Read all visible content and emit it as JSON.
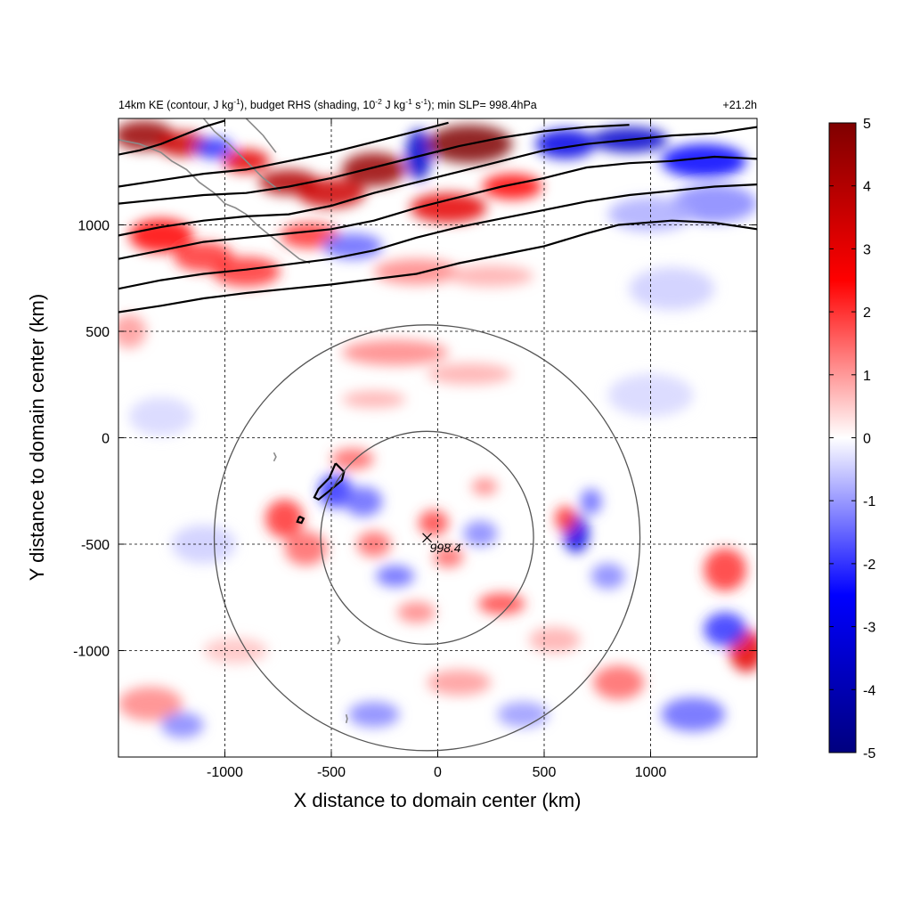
{
  "chart_data": {
    "type": "heatmap",
    "title_left": {
      "p1": "14km KE (contour, J kg",
      "p1_sup": "-1",
      "p2": "), budget RHS (shading, 10",
      "p2_sup": "-2",
      "p3": " J kg",
      "p3_sup": "-1",
      "p4": " s",
      "p4_sup": "-1",
      "p5": "); min SLP= 998.4hPa"
    },
    "title_right": "+21.2h",
    "xlabel": "X distance to domain center (km)",
    "ylabel": "Y distance to domain center (km)",
    "xlim": [
      -1500,
      1500
    ],
    "ylim": [
      -1500,
      1500
    ],
    "xticks": [
      -1000,
      -500,
      0,
      500,
      1000
    ],
    "yticks": [
      1000,
      500,
      0,
      -500,
      -1000
    ],
    "xtick_labels": [
      "-1000",
      "-500",
      "0",
      "500",
      "1000"
    ],
    "ytick_labels": [
      "1000",
      "500",
      "0",
      "-500",
      "-1000"
    ],
    "grid": true,
    "center": {
      "x": -50,
      "y": -470,
      "label": "998.4"
    },
    "rings_km": [
      500,
      1000
    ],
    "colorbar": {
      "min": -5,
      "max": 5,
      "ticks": [
        5,
        4,
        3,
        2,
        1,
        0,
        -1,
        -2,
        -3,
        -4,
        -5
      ],
      "tick_labels": [
        "5",
        "4",
        "3",
        "2",
        "1",
        "0",
        "-1",
        "-2",
        "-3",
        "-4",
        "-5"
      ],
      "colors": [
        "#00007f",
        "#0000ff",
        "#ffffff",
        "#ff0000",
        "#7f0000"
      ]
    },
    "contours_km": [
      [
        [
          -1500,
          590
        ],
        [
          -1300,
          620
        ],
        [
          -1100,
          655
        ],
        [
          -900,
          680
        ],
        [
          -700,
          700
        ],
        [
          -500,
          720
        ],
        [
          -300,
          745
        ],
        [
          -100,
          770
        ],
        [
          100,
          820
        ],
        [
          300,
          860
        ],
        [
          500,
          900
        ],
        [
          700,
          960
        ],
        [
          850,
          1000
        ],
        [
          1100,
          1020
        ],
        [
          1300,
          1010
        ],
        [
          1500,
          980
        ]
      ],
      [
        [
          -1500,
          700
        ],
        [
          -1300,
          740
        ],
        [
          -1100,
          770
        ],
        [
          -900,
          790
        ],
        [
          -700,
          815
        ],
        [
          -500,
          840
        ],
        [
          -300,
          880
        ],
        [
          -100,
          940
        ],
        [
          100,
          990
        ],
        [
          300,
          1030
        ],
        [
          500,
          1070
        ],
        [
          700,
          1110
        ],
        [
          900,
          1140
        ],
        [
          1100,
          1160
        ],
        [
          1300,
          1180
        ],
        [
          1500,
          1190
        ]
      ],
      [
        [
          -1500,
          840
        ],
        [
          -1300,
          880
        ],
        [
          -1100,
          920
        ],
        [
          -900,
          940
        ],
        [
          -700,
          960
        ],
        [
          -500,
          980
        ],
        [
          -300,
          1020
        ],
        [
          -100,
          1080
        ],
        [
          100,
          1130
        ],
        [
          300,
          1180
        ],
        [
          500,
          1220
        ],
        [
          700,
          1270
        ],
        [
          900,
          1290
        ],
        [
          1100,
          1300
        ],
        [
          1300,
          1320
        ],
        [
          1500,
          1310
        ]
      ],
      [
        [
          -1500,
          950
        ],
        [
          -1300,
          990
        ],
        [
          -1100,
          1020
        ],
        [
          -900,
          1040
        ],
        [
          -700,
          1050
        ],
        [
          -500,
          1090
        ],
        [
          -300,
          1150
        ],
        [
          -100,
          1200
        ],
        [
          100,
          1250
        ],
        [
          300,
          1300
        ],
        [
          500,
          1350
        ],
        [
          700,
          1380
        ],
        [
          900,
          1400
        ],
        [
          1100,
          1420
        ],
        [
          1300,
          1430
        ],
        [
          1500,
          1460
        ]
      ],
      [
        [
          -1500,
          1100
        ],
        [
          -1300,
          1120
        ],
        [
          -1100,
          1140
        ],
        [
          -900,
          1150
        ],
        [
          -700,
          1180
        ],
        [
          -500,
          1220
        ],
        [
          -300,
          1270
        ],
        [
          -100,
          1320
        ],
        [
          100,
          1370
        ],
        [
          300,
          1410
        ],
        [
          500,
          1440
        ],
        [
          700,
          1460
        ],
        [
          900,
          1470
        ]
      ],
      [
        [
          -1500,
          1180
        ],
        [
          -1300,
          1210
        ],
        [
          -1100,
          1240
        ],
        [
          -900,
          1260
        ],
        [
          -700,
          1300
        ],
        [
          -500,
          1340
        ],
        [
          -300,
          1390
        ],
        [
          -100,
          1440
        ],
        [
          50,
          1480
        ]
      ],
      [
        [
          -1500,
          1330
        ],
        [
          -1400,
          1350
        ],
        [
          -1300,
          1380
        ],
        [
          -1200,
          1420
        ],
        [
          -1100,
          1460
        ],
        [
          -1000,
          1490
        ]
      ],
      [
        [
          -480,
          -120
        ],
        [
          -440,
          -160
        ],
        [
          -450,
          -200
        ],
        [
          -510,
          -250
        ],
        [
          -560,
          -290
        ],
        [
          -580,
          -280
        ],
        [
          -560,
          -240
        ],
        [
          -510,
          -190
        ],
        [
          -480,
          -120
        ]
      ],
      [
        [
          -650,
          -370
        ],
        [
          -630,
          -380
        ],
        [
          -640,
          -400
        ],
        [
          -660,
          -395
        ],
        [
          -650,
          -370
        ]
      ]
    ],
    "coastlines_km": [
      [
        [
          -1500,
          1400
        ],
        [
          -1400,
          1380
        ],
        [
          -1300,
          1340
        ],
        [
          -1250,
          1300
        ],
        [
          -1180,
          1260
        ],
        [
          -1120,
          1200
        ],
        [
          -1050,
          1150
        ],
        [
          -1000,
          1100
        ],
        [
          -950,
          1080
        ],
        [
          -900,
          1050
        ],
        [
          -850,
          1000
        ],
        [
          -800,
          960
        ],
        [
          -750,
          920
        ],
        [
          -700,
          880
        ],
        [
          -650,
          840
        ],
        [
          -600,
          820
        ]
      ],
      [
        [
          -1100,
          1500
        ],
        [
          -1050,
          1440
        ],
        [
          -980,
          1380
        ],
        [
          -920,
          1320
        ],
        [
          -860,
          1260
        ],
        [
          -820,
          1220
        ],
        [
          -780,
          1190
        ],
        [
          -740,
          1160
        ]
      ],
      [
        [
          -900,
          1500
        ],
        [
          -860,
          1460
        ],
        [
          -820,
          1420
        ],
        [
          -790,
          1380
        ],
        [
          -760,
          1340
        ]
      ],
      [
        [
          -770,
          -70
        ],
        [
          -760,
          -90
        ],
        [
          -770,
          -110
        ]
      ],
      [
        [
          -470,
          -930
        ],
        [
          -460,
          -950
        ],
        [
          -470,
          -970
        ]
      ],
      [
        [
          -430,
          -1300
        ],
        [
          -425,
          -1320
        ],
        [
          -430,
          -1340
        ]
      ]
    ],
    "shading_blobs": [
      {
        "x": -1380,
        "y": 1420,
        "rx": 140,
        "ry": 70,
        "v": 4.5
      },
      {
        "x": -1200,
        "y": 1380,
        "rx": 120,
        "ry": 60,
        "v": 3.5
      },
      {
        "x": -1050,
        "y": 1360,
        "rx": 90,
        "ry": 50,
        "v": -2.0
      },
      {
        "x": -900,
        "y": 1300,
        "rx": 110,
        "ry": 55,
        "v": 3.0
      },
      {
        "x": -700,
        "y": 1200,
        "rx": 140,
        "ry": 60,
        "v": 4.0
      },
      {
        "x": -500,
        "y": 1150,
        "rx": 160,
        "ry": 70,
        "v": 3.5
      },
      {
        "x": -300,
        "y": 1260,
        "rx": 150,
        "ry": 80,
        "v": 4.5
      },
      {
        "x": -90,
        "y": 1330,
        "rx": 60,
        "ry": 120,
        "v": -3.5
      },
      {
        "x": 150,
        "y": 1380,
        "rx": 200,
        "ry": 90,
        "v": 5.0
      },
      {
        "x": 50,
        "y": 1080,
        "rx": 180,
        "ry": 70,
        "v": 3.0
      },
      {
        "x": 350,
        "y": 1180,
        "rx": 140,
        "ry": 60,
        "v": 2.5
      },
      {
        "x": 600,
        "y": 1380,
        "rx": 140,
        "ry": 70,
        "v": -3.0
      },
      {
        "x": 900,
        "y": 1400,
        "rx": 180,
        "ry": 60,
        "v": -3.5
      },
      {
        "x": 1250,
        "y": 1300,
        "rx": 200,
        "ry": 80,
        "v": -2.5
      },
      {
        "x": 1300,
        "y": 1100,
        "rx": 200,
        "ry": 90,
        "v": -1.2
      },
      {
        "x": 1000,
        "y": 1050,
        "rx": 200,
        "ry": 80,
        "v": -0.8
      },
      {
        "x": -1300,
        "y": 950,
        "rx": 150,
        "ry": 80,
        "v": 2.5
      },
      {
        "x": -1100,
        "y": 850,
        "rx": 140,
        "ry": 70,
        "v": 2.0
      },
      {
        "x": -900,
        "y": 780,
        "rx": 160,
        "ry": 70,
        "v": 2.0
      },
      {
        "x": -600,
        "y": 950,
        "rx": 140,
        "ry": 60,
        "v": 2.0
      },
      {
        "x": -400,
        "y": 900,
        "rx": 140,
        "ry": 60,
        "v": -1.5
      },
      {
        "x": -100,
        "y": 780,
        "rx": 200,
        "ry": 60,
        "v": 1.2
      },
      {
        "x": 250,
        "y": 760,
        "rx": 200,
        "ry": 50,
        "v": 0.8
      },
      {
        "x": -1450,
        "y": 500,
        "rx": 80,
        "ry": 80,
        "v": 1.0
      },
      {
        "x": -200,
        "y": 400,
        "rx": 250,
        "ry": 60,
        "v": 1.2
      },
      {
        "x": 150,
        "y": 300,
        "rx": 200,
        "ry": 50,
        "v": 0.8
      },
      {
        "x": -300,
        "y": 180,
        "rx": 150,
        "ry": 40,
        "v": 0.8
      },
      {
        "x": -400,
        "y": -100,
        "rx": 100,
        "ry": 50,
        "v": 1.5
      },
      {
        "x": -720,
        "y": -380,
        "rx": 90,
        "ry": 90,
        "v": 2.0
      },
      {
        "x": -620,
        "y": -520,
        "rx": 100,
        "ry": 80,
        "v": 1.5
      },
      {
        "x": -480,
        "y": -250,
        "rx": 80,
        "ry": 80,
        "v": -2.0
      },
      {
        "x": -350,
        "y": -300,
        "rx": 90,
        "ry": 70,
        "v": -1.5
      },
      {
        "x": -300,
        "y": -500,
        "rx": 80,
        "ry": 60,
        "v": 1.5
      },
      {
        "x": -200,
        "y": -650,
        "rx": 90,
        "ry": 50,
        "v": -1.5
      },
      {
        "x": -20,
        "y": -400,
        "rx": 70,
        "ry": 60,
        "v": 1.8
      },
      {
        "x": 50,
        "y": -560,
        "rx": 70,
        "ry": 50,
        "v": 1.5
      },
      {
        "x": 200,
        "y": -450,
        "rx": 80,
        "ry": 60,
        "v": -1.2
      },
      {
        "x": 300,
        "y": -780,
        "rx": 110,
        "ry": 50,
        "v": 1.8
      },
      {
        "x": -100,
        "y": -820,
        "rx": 90,
        "ry": 50,
        "v": 1.2
      },
      {
        "x": 220,
        "y": -230,
        "rx": 60,
        "ry": 40,
        "v": 1.2
      },
      {
        "x": 650,
        "y": -450,
        "rx": 60,
        "ry": 90,
        "v": -3.0
      },
      {
        "x": 600,
        "y": -380,
        "rx": 50,
        "ry": 60,
        "v": 2.0
      },
      {
        "x": 720,
        "y": -300,
        "rx": 50,
        "ry": 60,
        "v": -1.5
      },
      {
        "x": 800,
        "y": -650,
        "rx": 80,
        "ry": 60,
        "v": -1.2
      },
      {
        "x": 1350,
        "y": -620,
        "rx": 100,
        "ry": 100,
        "v": 2.0
      },
      {
        "x": 1450,
        "y": -1000,
        "rx": 80,
        "ry": 100,
        "v": 3.0
      },
      {
        "x": 1350,
        "y": -900,
        "rx": 100,
        "ry": 80,
        "v": -2.0
      },
      {
        "x": 850,
        "y": -1150,
        "rx": 120,
        "ry": 80,
        "v": 1.5
      },
      {
        "x": 1200,
        "y": -1300,
        "rx": 150,
        "ry": 80,
        "v": -1.5
      },
      {
        "x": -1350,
        "y": -1250,
        "rx": 150,
        "ry": 80,
        "v": 1.2
      },
      {
        "x": -1200,
        "y": -1350,
        "rx": 100,
        "ry": 60,
        "v": -1.2
      },
      {
        "x": -300,
        "y": -1300,
        "rx": 120,
        "ry": 60,
        "v": -1.2
      },
      {
        "x": 100,
        "y": -1150,
        "rx": 150,
        "ry": 60,
        "v": 1.0
      },
      {
        "x": 400,
        "y": -1300,
        "rx": 120,
        "ry": 60,
        "v": -1.0
      },
      {
        "x": -1100,
        "y": -500,
        "rx": 150,
        "ry": 90,
        "v": -0.5
      },
      {
        "x": -1300,
        "y": 100,
        "rx": 150,
        "ry": 90,
        "v": -0.4
      },
      {
        "x": 1000,
        "y": 200,
        "rx": 200,
        "ry": 100,
        "v": -0.4
      },
      {
        "x": 1100,
        "y": 700,
        "rx": 200,
        "ry": 100,
        "v": -0.5
      },
      {
        "x": -950,
        "y": -1000,
        "rx": 150,
        "ry": 60,
        "v": 0.6
      },
      {
        "x": 550,
        "y": -950,
        "rx": 120,
        "ry": 60,
        "v": 0.8
      }
    ]
  }
}
